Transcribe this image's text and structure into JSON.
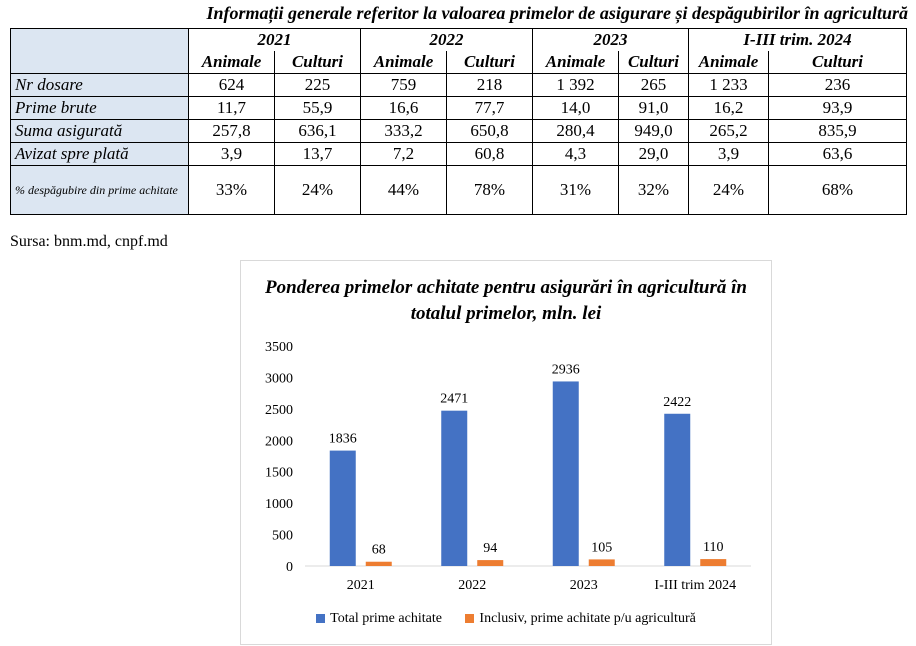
{
  "document": {
    "title": "Informații generale referitor la valoarea primelor de asigurare și despăgubirilor în agricultură",
    "source": "Sursa: bnm.md, cnpf.md"
  },
  "table": {
    "years": [
      "2021",
      "2022",
      "2023",
      "I-III trim. 2024"
    ],
    "subheaders": [
      "Animale",
      "Culturi"
    ],
    "rows": [
      {
        "label": "Nr dosare",
        "values": [
          "624",
          "225",
          "759",
          "218",
          "1 392",
          "265",
          "1 233",
          "236"
        ]
      },
      {
        "label": "Prime brute",
        "values": [
          "11,7",
          "55,9",
          "16,6",
          "77,7",
          "14,0",
          "91,0",
          "16,2",
          "93,9"
        ]
      },
      {
        "label": "Suma asigurată",
        "values": [
          "257,8",
          "636,1",
          "333,2",
          "650,8",
          "280,4",
          "949,0",
          "265,2",
          "835,9"
        ]
      },
      {
        "label": "Avizat spre plată",
        "values": [
          "3,9",
          "13,7",
          "7,2",
          "60,8",
          "4,3",
          "29,0",
          "3,9",
          "63,6"
        ]
      },
      {
        "label": "% despăgubire din prime achitate",
        "values": [
          "33%",
          "24%",
          "44%",
          "78%",
          "31%",
          "32%",
          "24%",
          "68%"
        ]
      }
    ]
  },
  "chart_data": {
    "type": "bar",
    "title": "Ponderea primelor achitate pentru asigurări în agricultură în totalul primelor, mln. lei",
    "categories": [
      "2021",
      "2022",
      "2023",
      "I-III trim 2024"
    ],
    "series": [
      {
        "name": "Total prime achitate",
        "values": [
          1836,
          2471,
          2936,
          2422
        ],
        "color": "#4472c4"
      },
      {
        "name": "Inclusiv, prime achitate p/u agricultură",
        "values": [
          68,
          94,
          105,
          110
        ],
        "color": "#ed7d31"
      }
    ],
    "ylim": [
      0,
      3500
    ],
    "yticks": [
      "0",
      "500",
      "1000",
      "1500",
      "2000",
      "2500",
      "3000",
      "3500"
    ],
    "grid": false,
    "legend": "bottom"
  }
}
